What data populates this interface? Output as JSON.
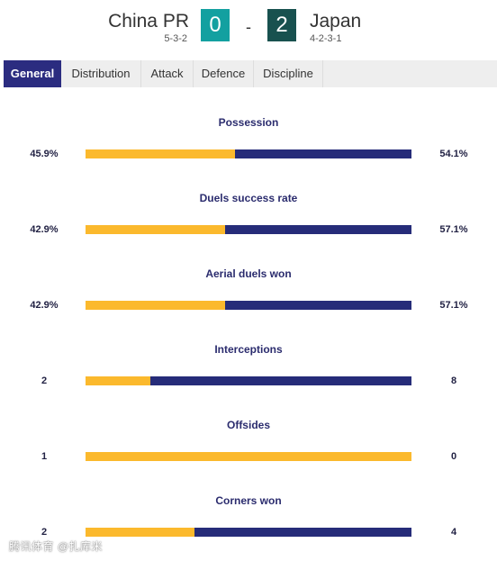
{
  "match": {
    "home": {
      "name": "China PR",
      "formation": "5-3-2",
      "score": "0"
    },
    "away": {
      "name": "Japan",
      "formation": "4-2-3-1",
      "score": "2"
    },
    "separator": "-"
  },
  "colors": {
    "home_bar": "#fbb92d",
    "away_bar": "#262c79",
    "home_score_bg": "#13a0a0",
    "away_score_bg": "#18514f",
    "active_tab": "#2b2c80"
  },
  "tabs": [
    {
      "label": "General",
      "active": true
    },
    {
      "label": "Distribution",
      "active": false
    },
    {
      "label": "Attack",
      "active": false
    },
    {
      "label": "Defence",
      "active": false
    },
    {
      "label": "Discipline",
      "active": false
    }
  ],
  "stats": [
    {
      "title": "Possession",
      "home": "45.9%",
      "away": "54.1%",
      "home_share": 45.9
    },
    {
      "title": "Duels success rate",
      "home": "42.9%",
      "away": "57.1%",
      "home_share": 42.9
    },
    {
      "title": "Aerial duels won",
      "home": "42.9%",
      "away": "57.1%",
      "home_share": 42.9
    },
    {
      "title": "Interceptions",
      "home": "2",
      "away": "8",
      "home_share": 20
    },
    {
      "title": "Offsides",
      "home": "1",
      "away": "0",
      "home_share": 100
    },
    {
      "title": "Corners won",
      "home": "2",
      "away": "4",
      "home_share": 33.3
    }
  ],
  "watermark": "腾讯体育 @扎库米"
}
